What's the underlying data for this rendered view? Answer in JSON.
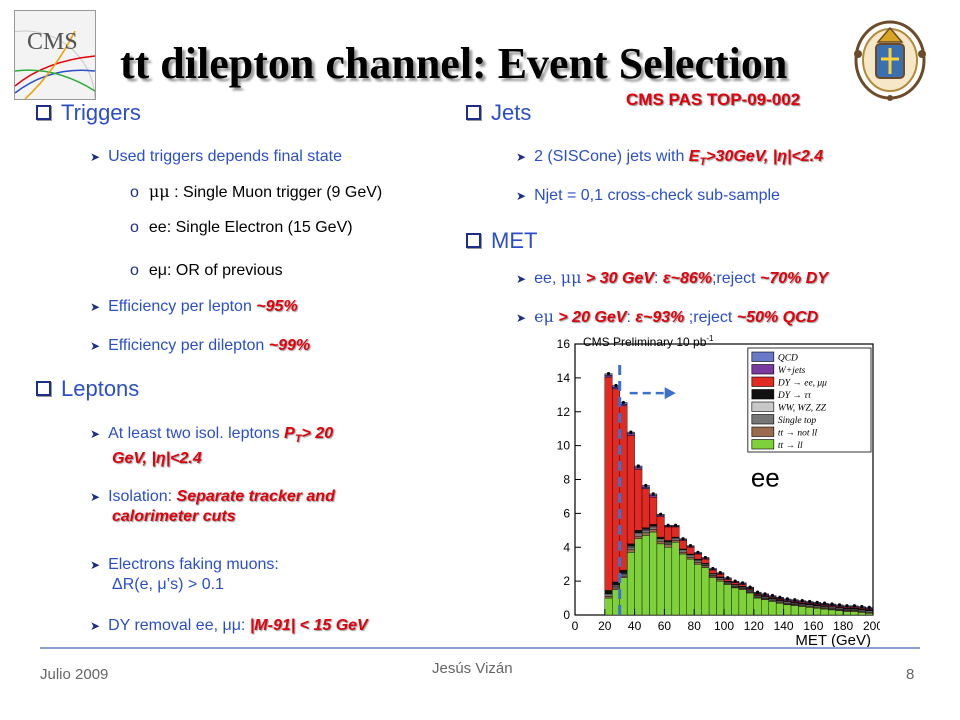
{
  "slide": {
    "title": "tt dilepton channel: Event Selection",
    "reference": "CMS PAS TOP-09-002",
    "left": {
      "triggers_header": "Triggers",
      "trig_used": "Used triggers depends final state",
      "trig_mumu_sym": "μμ",
      "trig_mumu": " : Single Muon trigger (9 GeV)",
      "trig_ee": "ee: Single Electron (15 GeV)",
      "trig_emu": "eμ: OR of previous",
      "eff_lepton": "Efficiency per lepton ",
      "eff_lepton_val": "~95%",
      "eff_dilepton": "Efficiency per dilepton ",
      "eff_dilepton_val": "~99%",
      "leptons_header": "Leptons",
      "lep1": "At least two isol. leptons ",
      "lep1_red_a": "P",
      "lep1_red_sub": "T",
      "lep1_red_b": "> 20",
      "lep1_red_c": "GeV, |η|<2.4",
      "lep2": "Isolation: ",
      "lep2_red_a": "Separate tracker and",
      "lep2_red_b": "calorimeter cuts",
      "lep3_a": "Electrons faking muons:",
      "lep3_b": "ΔR(e, μ’s) > 0.1",
      "lep4": "DY removal ee, μμ: ",
      "lep4_red": "|M-91| < 15 GeV"
    },
    "right": {
      "jets_header": "Jets",
      "jets1_a": "2 (SISCone) jets with ",
      "jets1_red_a": "E",
      "jets1_red_sub": "T",
      "jets1_red_b": ">30GeV, |η|<2.4",
      "jets2": "Njet = 0,1 cross-check sub-sample",
      "met_header": "MET",
      "met1_a": "ee, ",
      "met1_mumu": "μμ",
      "met1_red_a": " > 30 GeV",
      "met1_colon": ": ",
      "met1_red_b": "ε~86%",
      "met1_rej": ";reject ",
      "met1_red_c": "~70% DY",
      "met2_a": "eμ",
      "met2_red_a": " > 20 GeV",
      "met2_colon": ": ",
      "met2_red_b": "ε~93%",
      "met2_rej": " ;reject ",
      "met2_red_c": "~50% QCD"
    },
    "footer": {
      "date": "Julio 2009",
      "author": "Jesús Vizán",
      "page": "8"
    },
    "logo_left_text": "CMS",
    "colors": {
      "blue": "#2a4fc9",
      "red": "#e4000b",
      "dy_red": "#e02a22",
      "ttbar_green": "#7fd13c"
    }
  },
  "chart_data": {
    "type": "bar",
    "title": "CMS Preliminary  10 pb",
    "title_sup": "-1",
    "xlabel": "MET (GeV)",
    "x_ticks": [
      "0",
      "20",
      "40",
      "60",
      "80",
      "100",
      "120",
      "140",
      "160",
      "180",
      "200"
    ],
    "y_ticks": [
      "0",
      "2",
      "4",
      "6",
      "8",
      "10",
      "12",
      "14",
      "16"
    ],
    "xlim": [
      0,
      200
    ],
    "ylim": [
      0,
      16
    ],
    "annotation": "ee",
    "cut_line_x": 30,
    "bin_width": 5,
    "x": [
      20,
      25,
      30,
      35,
      40,
      45,
      50,
      55,
      60,
      65,
      70,
      75,
      80,
      85,
      90,
      95,
      100,
      105,
      110,
      115,
      120,
      125,
      130,
      135,
      140,
      145,
      150,
      155,
      160,
      165,
      170,
      175,
      180,
      185,
      190,
      195
    ],
    "series": [
      {
        "name": "tt → ll",
        "color": "#7fd13c",
        "values": [
          1.0,
          1.5,
          2.2,
          3.7,
          4.5,
          4.7,
          4.9,
          4.2,
          4.0,
          4.3,
          3.6,
          3.3,
          3.0,
          2.8,
          2.2,
          2.0,
          1.8,
          1.6,
          1.5,
          1.3,
          1.0,
          0.9,
          0.8,
          0.7,
          0.6,
          0.55,
          0.5,
          0.45,
          0.4,
          0.35,
          0.3,
          0.25,
          0.2,
          0.2,
          0.15,
          0.1
        ]
      },
      {
        "name": "tt → not ll",
        "color": "#9a6b4e",
        "values": [
          0.1,
          0.1,
          0.1,
          0.15,
          0.15,
          0.15,
          0.15,
          0.15,
          0.15,
          0.1,
          0.1,
          0.1,
          0.1,
          0.1,
          0.1,
          0.1,
          0.05,
          0.05,
          0.05,
          0.05,
          0.05,
          0.05,
          0.05,
          0.05,
          0.05,
          0.05,
          0.05,
          0.05,
          0.05,
          0.05,
          0.05,
          0.05,
          0.05,
          0.05,
          0.05,
          0.05
        ]
      },
      {
        "name": "Single top",
        "color": "#777777",
        "values": [
          0.1,
          0.1,
          0.1,
          0.15,
          0.15,
          0.15,
          0.15,
          0.1,
          0.1,
          0.1,
          0.1,
          0.1,
          0.1,
          0.05,
          0.05,
          0.05,
          0.05,
          0.05,
          0.05,
          0.05,
          0.05,
          0.05,
          0.05,
          0.05,
          0.05,
          0.05,
          0.05,
          0.05,
          0.05,
          0.05,
          0.05,
          0.05,
          0.05,
          0.05,
          0.05,
          0.05
        ]
      },
      {
        "name": "WW, WZ, ZZ",
        "color": "#c8c8c8",
        "values": [
          0.05,
          0.05,
          0.05,
          0.05,
          0.05,
          0.05,
          0.05,
          0.05,
          0.05,
          0.05,
          0.05,
          0.05,
          0.05,
          0.05,
          0.05,
          0.05,
          0.05,
          0.05,
          0.05,
          0.05,
          0.05,
          0.05,
          0.05,
          0.05,
          0.05,
          0.05,
          0.05,
          0.05,
          0.05,
          0.05,
          0.05,
          0.05,
          0.05,
          0.05,
          0.05,
          0.05
        ]
      },
      {
        "name": "DY → ττ",
        "color": "#111111",
        "values": [
          0.2,
          0.2,
          0.2,
          0.15,
          0.15,
          0.1,
          0.1,
          0.1,
          0.1,
          0.05,
          0.05,
          0.05,
          0.05,
          0.05,
          0.05,
          0.05,
          0.05,
          0.05,
          0.05,
          0.05,
          0.05,
          0.05,
          0.05,
          0.05,
          0.05,
          0.05,
          0.05,
          0.05,
          0.05,
          0.05,
          0.05,
          0.05,
          0.05,
          0.05,
          0.05,
          0.05
        ]
      },
      {
        "name": "DY → ee, μμ",
        "color": "#e02a22",
        "values": [
          12.6,
          11.4,
          9.7,
          6.4,
          3.6,
          2.3,
          1.6,
          1.2,
          0.8,
          0.6,
          0.5,
          0.4,
          0.3,
          0.25,
          0.2,
          0.15,
          0.1,
          0.1,
          0.1,
          0.05,
          0.05,
          0.05,
          0.05,
          0.05,
          0.05,
          0.05,
          0.05,
          0.05,
          0.05,
          0.05,
          0.05,
          0.05,
          0.05,
          0.05,
          0.05,
          0.05
        ]
      },
      {
        "name": "W+jets",
        "color": "#7b3aa0",
        "values": [
          0.1,
          0.1,
          0.1,
          0.1,
          0.1,
          0.1,
          0.1,
          0.1,
          0.05,
          0.05,
          0.05,
          0.05,
          0.05,
          0.05,
          0.05,
          0.05,
          0.05,
          0.05,
          0.05,
          0.05,
          0.05,
          0.05,
          0.05,
          0.05,
          0.05,
          0.05,
          0.05,
          0.05,
          0.05,
          0.05,
          0.05,
          0.05,
          0.05,
          0.05,
          0.05,
          0.05
        ]
      },
      {
        "name": "QCD",
        "color": "#6a78c8",
        "values": [
          0.1,
          0.1,
          0.1,
          0.1,
          0.1,
          0.1,
          0.1,
          0.05,
          0.05,
          0.05,
          0.05,
          0.05,
          0.05,
          0.05,
          0.05,
          0.05,
          0.05,
          0.05,
          0.05,
          0.05,
          0.05,
          0.05,
          0.05,
          0.05,
          0.05,
          0.05,
          0.05,
          0.05,
          0.05,
          0.05,
          0.05,
          0.05,
          0.05,
          0.05,
          0.05,
          0.05
        ]
      }
    ],
    "legend": [
      "QCD",
      "W+jets",
      "DY → ee, μμ",
      "DY → ττ",
      "WW, WZ, ZZ",
      "Single top",
      "tt → not ll",
      "tt → ll"
    ]
  }
}
